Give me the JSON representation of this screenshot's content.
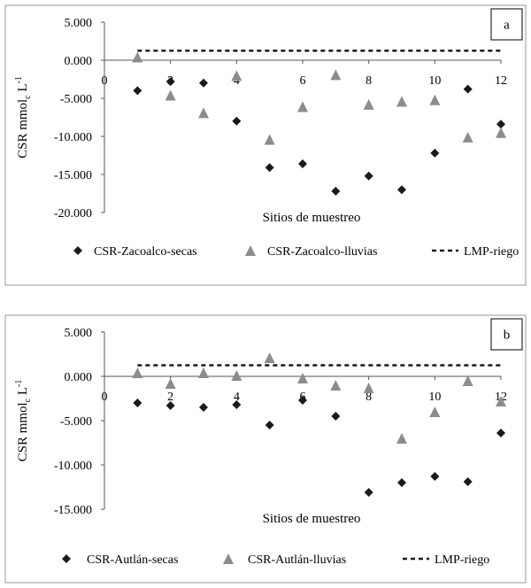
{
  "chart_data": [
    {
      "type": "scatter",
      "panel": "a",
      "xlabel": "Sitios de muestreo",
      "ylabel": "CSR mmol",
      "ylabel_sub": "c",
      "ylabel_unit": " L",
      "ylabel_sup": "-1",
      "x_ticks": [
        0,
        2,
        4,
        6,
        8,
        10,
        12
      ],
      "y_ticks": [
        5,
        0,
        -5,
        -10,
        -15,
        -20
      ],
      "y_tick_labels": [
        "5.000",
        "0.000",
        "-5.000",
        "-10.000",
        "-15.000",
        "-20.000"
      ],
      "xlim": [
        0,
        12
      ],
      "ylim": [
        -20,
        5
      ],
      "series": [
        {
          "name": "CSR-Zacoalco-secas",
          "marker": "diamond",
          "color": "#1a1a1a",
          "x": [
            1,
            2,
            3,
            4,
            5,
            6,
            7,
            8,
            9,
            10,
            11,
            12
          ],
          "values": [
            -4.0,
            -2.8,
            -3.0,
            -8.0,
            -14.1,
            -13.6,
            -17.2,
            -15.2,
            -17.0,
            -12.2,
            -3.8,
            -8.4
          ]
        },
        {
          "name": "CSR-Zacoalco-lluvias",
          "marker": "triangle",
          "color": "#8c8c8c",
          "x": [
            1,
            2,
            3,
            4,
            5,
            6,
            7,
            8,
            9,
            10,
            11,
            12
          ],
          "values": [
            0.4,
            -4.6,
            -6.9,
            -2.0,
            -10.4,
            -6.1,
            -1.9,
            -5.8,
            -5.4,
            -5.2,
            -10.1,
            -9.5
          ]
        },
        {
          "name": "LMP-riego",
          "marker": "dashed-line",
          "color": "#1a1a1a",
          "x": [
            1,
            12
          ],
          "values": [
            1.25,
            1.25
          ]
        }
      ]
    },
    {
      "type": "scatter",
      "panel": "b",
      "xlabel": "Sitios de muestreo",
      "ylabel": "CSR mmol",
      "ylabel_sub": "c",
      "ylabel_unit": " L",
      "ylabel_sup": "-1",
      "x_ticks": [
        0,
        2,
        4,
        6,
        8,
        10,
        12
      ],
      "y_ticks": [
        5,
        0,
        -5,
        -10,
        -15
      ],
      "y_tick_labels": [
        "5.000",
        "0.000",
        "-5.000",
        "-10.000",
        "-15.000"
      ],
      "xlim": [
        0,
        12
      ],
      "ylim": [
        -15,
        5
      ],
      "series": [
        {
          "name": "CSR-Autlán-secas",
          "marker": "diamond",
          "color": "#1a1a1a",
          "x": [
            1,
            2,
            3,
            4,
            5,
            6,
            7,
            8,
            9,
            10,
            11,
            12
          ],
          "values": [
            -3.0,
            -3.3,
            -3.5,
            -3.2,
            -5.5,
            -2.7,
            -4.5,
            -13.1,
            -12.0,
            -11.3,
            -11.9,
            -6.4
          ]
        },
        {
          "name": "CSR-Autlán-lluvias",
          "marker": "triangle",
          "color": "#8c8c8c",
          "x": [
            1,
            2,
            3,
            4,
            5,
            6,
            7,
            8,
            9,
            10,
            11,
            12
          ],
          "values": [
            0.4,
            -0.8,
            0.4,
            0.1,
            2.1,
            -0.2,
            -1.0,
            -1.3,
            -7.0,
            -4.0,
            -0.5,
            -2.8
          ]
        },
        {
          "name": "LMP-riego",
          "marker": "dashed-line",
          "color": "#1a1a1a",
          "x": [
            1,
            12
          ],
          "values": [
            1.25,
            1.25
          ]
        }
      ]
    }
  ]
}
